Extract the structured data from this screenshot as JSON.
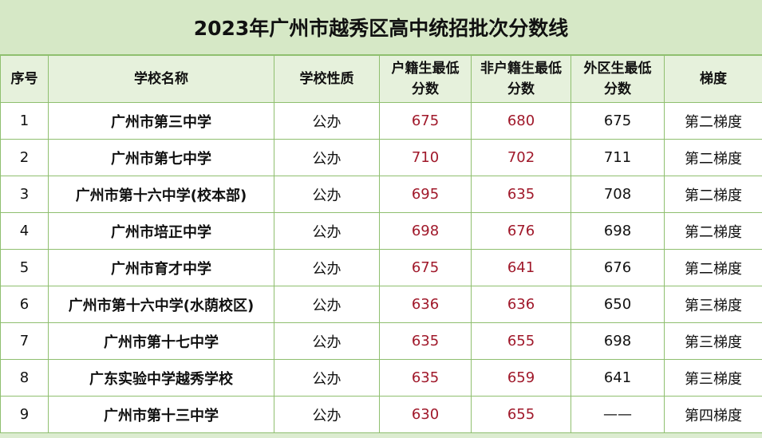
{
  "title": "2023年广州市越秀区高中统招批次分数线",
  "colors": {
    "header_bg": "#e6f1dc",
    "title_bg": "#d6e8c6",
    "border": "#8fbf6f",
    "score_red": "#a0182a"
  },
  "columns": [
    "序号",
    "学校名称",
    "学校性质",
    "户籍生最低分数",
    "非户籍生最低分数",
    "外区生最低分数",
    "梯度"
  ],
  "header_lines": [
    [
      "序号"
    ],
    [
      "学校名称"
    ],
    [
      "学校性质"
    ],
    [
      "户籍生最低",
      "分数"
    ],
    [
      "非户籍生最低",
      "分数"
    ],
    [
      "外区生最低",
      "分数"
    ],
    [
      "梯度"
    ]
  ],
  "rows": [
    [
      "1",
      "广州市第三中学",
      "公办",
      "675",
      "680",
      "675",
      "第二梯度"
    ],
    [
      "2",
      "广州市第七中学",
      "公办",
      "710",
      "702",
      "711",
      "第二梯度"
    ],
    [
      "3",
      "广州市第十六中学(校本部)",
      "公办",
      "695",
      "635",
      "708",
      "第二梯度"
    ],
    [
      "4",
      "广州市培正中学",
      "公办",
      "698",
      "676",
      "698",
      "第二梯度"
    ],
    [
      "5",
      "广州市育才中学",
      "公办",
      "675",
      "641",
      "676",
      "第二梯度"
    ],
    [
      "6",
      "广州市第十六中学(水荫校区)",
      "公办",
      "636",
      "636",
      "650",
      "第三梯度"
    ],
    [
      "7",
      "广州市第十七中学",
      "公办",
      "635",
      "655",
      "698",
      "第三梯度"
    ],
    [
      "8",
      "广东实验中学越秀学校",
      "公办",
      "635",
      "659",
      "641",
      "第三梯度"
    ],
    [
      "9",
      "广州市第十三中学",
      "公办",
      "630",
      "655",
      "——",
      "第四梯度"
    ]
  ]
}
